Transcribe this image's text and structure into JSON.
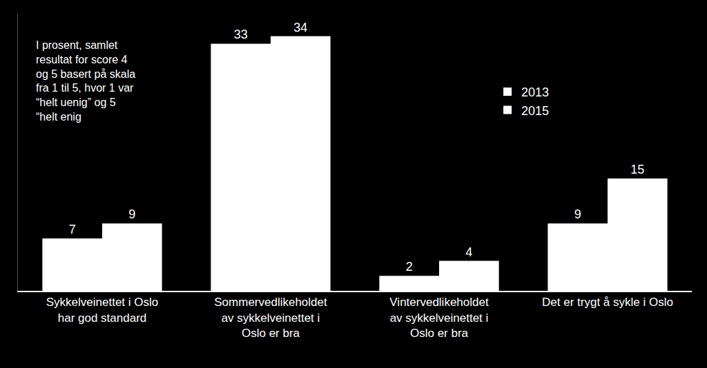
{
  "chart_data": {
    "type": "bar",
    "categories": [
      "Sykkelveinettet i Oslo\nhar god standard",
      "Sommervedlikeholdet\nav sykkelveinettet i\nOslo er bra",
      "Vintervedlikeholdet\nav sykkelveinettet i\nOslo er bra",
      "Det er trygt å sykle i Oslo"
    ],
    "series": [
      {
        "name": "2013",
        "color": "#ffffff",
        "values": [
          7,
          33,
          2,
          9
        ]
      },
      {
        "name": "2015",
        "color": "#ffffff",
        "values": [
          9,
          34,
          4,
          15
        ]
      }
    ],
    "ylim": [
      0,
      37
    ],
    "yticks": [],
    "grid": false,
    "legend": "top right",
    "data_labels": true,
    "tick_labels": "x",
    "annotations": [
      {
        "text": "I prosent, samlet\nresultat for score 4\nog 5 basert på skala\nfra 1 til 5, hvor 1 var\n“helt uenig” og 5\n“helt enig"
      }
    ]
  }
}
